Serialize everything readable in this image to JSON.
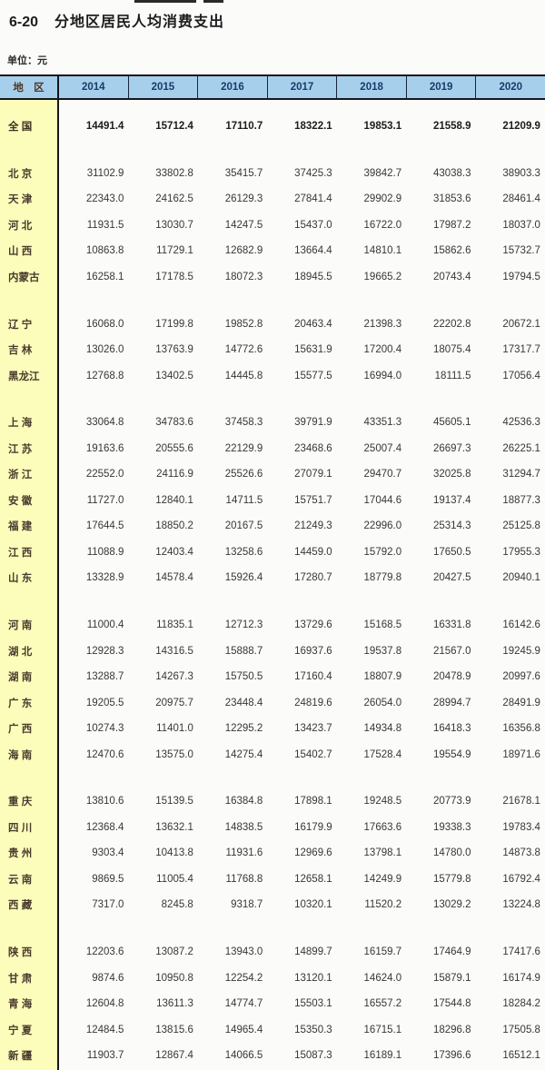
{
  "title": {
    "number": "6-20",
    "text": "分地区居民人均消费支出"
  },
  "unit_label": "单位：元",
  "table": {
    "region_header": "地 区",
    "years": [
      "2014",
      "2015",
      "2016",
      "2017",
      "2018",
      "2019",
      "2020"
    ],
    "groups": [
      {
        "rows": [
          {
            "region": "全 国",
            "bold": true,
            "values": [
              "14491.4",
              "15712.4",
              "17110.7",
              "18322.1",
              "19853.1",
              "21558.9",
              "21209.9"
            ]
          }
        ]
      },
      {
        "rows": [
          {
            "region": "北 京",
            "values": [
              "31102.9",
              "33802.8",
              "35415.7",
              "37425.3",
              "39842.7",
              "43038.3",
              "38903.3"
            ]
          },
          {
            "region": "天 津",
            "values": [
              "22343.0",
              "24162.5",
              "26129.3",
              "27841.4",
              "29902.9",
              "31853.6",
              "28461.4"
            ]
          },
          {
            "region": "河 北",
            "values": [
              "11931.5",
              "13030.7",
              "14247.5",
              "15437.0",
              "16722.0",
              "17987.2",
              "18037.0"
            ]
          },
          {
            "region": "山 西",
            "values": [
              "10863.8",
              "11729.1",
              "12682.9",
              "13664.4",
              "14810.1",
              "15862.6",
              "15732.7"
            ]
          },
          {
            "region": "内蒙古",
            "values": [
              "16258.1",
              "17178.5",
              "18072.3",
              "18945.5",
              "19665.2",
              "20743.4",
              "19794.5"
            ]
          }
        ]
      },
      {
        "rows": [
          {
            "region": "辽 宁",
            "values": [
              "16068.0",
              "17199.8",
              "19852.8",
              "20463.4",
              "21398.3",
              "22202.8",
              "20672.1"
            ]
          },
          {
            "region": "吉 林",
            "values": [
              "13026.0",
              "13763.9",
              "14772.6",
              "15631.9",
              "17200.4",
              "18075.4",
              "17317.7"
            ]
          },
          {
            "region": "黑龙江",
            "values": [
              "12768.8",
              "13402.5",
              "14445.8",
              "15577.5",
              "16994.0",
              "18111.5",
              "17056.4"
            ]
          }
        ]
      },
      {
        "rows": [
          {
            "region": "上 海",
            "values": [
              "33064.8",
              "34783.6",
              "37458.3",
              "39791.9",
              "43351.3",
              "45605.1",
              "42536.3"
            ]
          },
          {
            "region": "江 苏",
            "values": [
              "19163.6",
              "20555.6",
              "22129.9",
              "23468.6",
              "25007.4",
              "26697.3",
              "26225.1"
            ]
          },
          {
            "region": "浙 江",
            "values": [
              "22552.0",
              "24116.9",
              "25526.6",
              "27079.1",
              "29470.7",
              "32025.8",
              "31294.7"
            ]
          },
          {
            "region": "安 徽",
            "values": [
              "11727.0",
              "12840.1",
              "14711.5",
              "15751.7",
              "17044.6",
              "19137.4",
              "18877.3"
            ]
          },
          {
            "region": "福 建",
            "values": [
              "17644.5",
              "18850.2",
              "20167.5",
              "21249.3",
              "22996.0",
              "25314.3",
              "25125.8"
            ]
          },
          {
            "region": "江 西",
            "values": [
              "11088.9",
              "12403.4",
              "13258.6",
              "14459.0",
              "15792.0",
              "17650.5",
              "17955.3"
            ]
          },
          {
            "region": "山 东",
            "values": [
              "13328.9",
              "14578.4",
              "15926.4",
              "17280.7",
              "18779.8",
              "20427.5",
              "20940.1"
            ]
          }
        ]
      },
      {
        "rows": [
          {
            "region": "河 南",
            "values": [
              "11000.4",
              "11835.1",
              "12712.3",
              "13729.6",
              "15168.5",
              "16331.8",
              "16142.6"
            ]
          },
          {
            "region": "湖 北",
            "values": [
              "12928.3",
              "14316.5",
              "15888.7",
              "16937.6",
              "19537.8",
              "21567.0",
              "19245.9"
            ]
          },
          {
            "region": "湖 南",
            "values": [
              "13288.7",
              "14267.3",
              "15750.5",
              "17160.4",
              "18807.9",
              "20478.9",
              "20997.6"
            ]
          },
          {
            "region": "广 东",
            "values": [
              "19205.5",
              "20975.7",
              "23448.4",
              "24819.6",
              "26054.0",
              "28994.7",
              "28491.9"
            ]
          },
          {
            "region": "广 西",
            "values": [
              "10274.3",
              "11401.0",
              "12295.2",
              "13423.7",
              "14934.8",
              "16418.3",
              "16356.8"
            ]
          },
          {
            "region": "海 南",
            "values": [
              "12470.6",
              "13575.0",
              "14275.4",
              "15402.7",
              "17528.4",
              "19554.9",
              "18971.6"
            ]
          }
        ]
      },
      {
        "rows": [
          {
            "region": "重 庆",
            "values": [
              "13810.6",
              "15139.5",
              "16384.8",
              "17898.1",
              "19248.5",
              "20773.9",
              "21678.1"
            ]
          },
          {
            "region": "四 川",
            "values": [
              "12368.4",
              "13632.1",
              "14838.5",
              "16179.9",
              "17663.6",
              "19338.3",
              "19783.4"
            ]
          },
          {
            "region": "贵 州",
            "values": [
              "9303.4",
              "10413.8",
              "11931.6",
              "12969.6",
              "13798.1",
              "14780.0",
              "14873.8"
            ]
          },
          {
            "region": "云 南",
            "values": [
              "9869.5",
              "11005.4",
              "11768.8",
              "12658.1",
              "14249.9",
              "15779.8",
              "16792.4"
            ]
          },
          {
            "region": "西 藏",
            "values": [
              "7317.0",
              "8245.8",
              "9318.7",
              "10320.1",
              "11520.2",
              "13029.2",
              "13224.8"
            ]
          }
        ]
      },
      {
        "rows": [
          {
            "region": "陕 西",
            "values": [
              "12203.6",
              "13087.2",
              "13943.0",
              "14899.7",
              "16159.7",
              "17464.9",
              "17417.6"
            ]
          },
          {
            "region": "甘 肃",
            "values": [
              "9874.6",
              "10950.8",
              "12254.2",
              "13120.1",
              "14624.0",
              "15879.1",
              "16174.9"
            ]
          },
          {
            "region": "青 海",
            "values": [
              "12604.8",
              "13611.3",
              "14774.7",
              "15503.1",
              "16557.2",
              "17544.8",
              "18284.2"
            ]
          },
          {
            "region": "宁 夏",
            "values": [
              "12484.5",
              "13815.6",
              "14965.4",
              "15350.3",
              "16715.1",
              "18296.8",
              "17505.8"
            ]
          },
          {
            "region": "新 疆",
            "values": [
              "11903.7",
              "12867.4",
              "14066.5",
              "15087.3",
              "16189.1",
              "17396.6",
              "16512.1"
            ]
          }
        ]
      }
    ]
  },
  "colors": {
    "header_bg": "#a6cfeb",
    "region_col_bg": "#fcfdbb",
    "year_text": "#1b3a68",
    "region_text": "#4a3b2e",
    "border": "#16161c"
  }
}
